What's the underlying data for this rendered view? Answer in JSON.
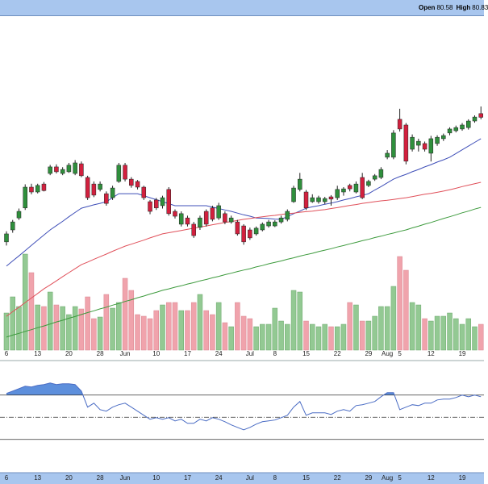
{
  "header": {
    "items": [
      {
        "label": "Open",
        "value": "80.58"
      },
      {
        "label": "High",
        "value": "80.83"
      }
    ]
  },
  "chart_data": {
    "type": "candlestick",
    "categories": [
      "6",
      null,
      null,
      null,
      null,
      "13",
      null,
      null,
      null,
      null,
      "20",
      null,
      null,
      null,
      null,
      "28",
      null,
      null,
      null,
      "Jun",
      null,
      null,
      null,
      null,
      "10",
      null,
      null,
      null,
      null,
      "17",
      null,
      null,
      null,
      null,
      "24",
      null,
      null,
      null,
      null,
      "Jul",
      null,
      null,
      null,
      "8",
      null,
      null,
      null,
      null,
      "15",
      null,
      null,
      null,
      null,
      "22",
      null,
      null,
      null,
      null,
      "29",
      null,
      null,
      "Aug",
      null,
      "5",
      null,
      null,
      null,
      null,
      "12",
      null,
      null,
      null,
      null,
      "19",
      null,
      null,
      null
    ],
    "open": [
      76.08,
      76.5,
      76.92,
      77.27,
      78.0,
      77.83,
      78.11,
      78.48,
      78.71,
      78.48,
      78.54,
      78.48,
      78.82,
      78.34,
      78.11,
      77.92,
      77.77,
      77.63,
      78.2,
      78.77,
      78.28,
      78.2,
      78.0,
      77.49,
      77.55,
      77.35,
      77.92,
      77.15,
      76.7,
      76.92,
      76.7,
      76.59,
      77.15,
      77.27,
      76.92,
      77.07,
      76.78,
      76.78,
      76.64,
      76.5,
      76.36,
      76.5,
      76.64,
      76.64,
      76.78,
      76.87,
      77.49,
      77.92,
      77.83,
      77.49,
      77.49,
      77.49,
      77.66,
      77.63,
      77.83,
      78.06,
      77.83,
      78.34,
      78.06,
      78.28,
      78.34,
      79.05,
      79.05,
      80.38,
      80.18,
      79.33,
      79.47,
      79.53,
      79.19,
      79.53,
      79.7,
      79.9,
      79.98,
      80.04,
      80.09,
      80.32,
      80.58
    ],
    "high": [
      76.45,
      76.85,
      77.25,
      78.1,
      78.12,
      78.12,
      78.18,
      78.78,
      78.8,
      78.7,
      78.85,
      78.95,
      78.9,
      78.4,
      78.2,
      78.2,
      77.85,
      78.05,
      78.85,
      78.85,
      78.35,
      78.25,
      78.05,
      77.55,
      77.62,
      77.7,
      78.0,
      77.22,
      77.15,
      77.0,
      76.78,
      77.0,
      77.22,
      77.35,
      77.45,
      77.15,
      77.0,
      76.85,
      76.7,
      76.58,
      76.62,
      76.76,
      76.85,
      76.84,
      77.0,
      77.22,
      78.05,
      78.5,
      77.9,
      77.75,
      77.7,
      77.66,
      77.72,
      78.05,
      78.0,
      78.12,
      78.2,
      78.5,
      78.26,
      78.46,
      78.7,
      79.3,
      80.0,
      80.75,
      80.25,
      79.85,
      79.7,
      79.6,
      79.8,
      79.82,
      79.88,
      80.1,
      80.16,
      80.25,
      80.38,
      80.52,
      80.83
    ],
    "low": [
      75.95,
      76.4,
      76.85,
      77.2,
      77.75,
      77.78,
      77.85,
      78.42,
      78.48,
      78.42,
      78.5,
      78.42,
      78.35,
      77.55,
      77.65,
      77.85,
      77.35,
      77.55,
      78.15,
      78.2,
      77.98,
      77.92,
      77.55,
      77.05,
      77.2,
      77.25,
      77.0,
      76.9,
      76.62,
      76.62,
      76.22,
      76.5,
      76.62,
      76.8,
      76.85,
      76.7,
      76.72,
      76.3,
      75.98,
      76.15,
      76.3,
      76.45,
      76.58,
      76.6,
      76.72,
      76.8,
      77.45,
      77.85,
      77.2,
      77.45,
      77.42,
      77.4,
      77.35,
      77.55,
      77.7,
      77.85,
      77.78,
      77.58,
      78.0,
      78.22,
      78.28,
      78.98,
      78.98,
      79.95,
      78.8,
      79.25,
      79.25,
      79.25,
      78.9,
      79.45,
      79.62,
      79.82,
      79.92,
      79.98,
      80.02,
      80.26,
      80.38
    ],
    "close": [
      76.36,
      76.78,
      77.15,
      78.0,
      77.83,
      78.06,
      77.88,
      78.71,
      78.54,
      78.62,
      78.77,
      78.85,
      78.4,
      77.63,
      77.72,
      78.11,
      77.43,
      77.97,
      78.77,
      78.28,
      78.06,
      78.0,
      77.63,
      77.15,
      77.27,
      77.63,
      77.07,
      76.98,
      77.07,
      76.7,
      76.3,
      76.92,
      76.7,
      76.87,
      77.35,
      76.78,
      76.92,
      76.36,
      76.08,
      76.22,
      76.56,
      76.7,
      76.78,
      76.78,
      76.92,
      77.15,
      77.97,
      78.28,
      77.27,
      77.63,
      77.63,
      77.6,
      77.58,
      77.92,
      77.94,
      77.94,
      78.11,
      77.63,
      78.2,
      78.4,
      78.62,
      79.19,
      79.9,
      80.04,
      78.91,
      79.75,
      79.61,
      79.33,
      79.7,
      79.75,
      79.81,
      80.04,
      80.09,
      80.18,
      80.32,
      80.46,
      80.45
    ],
    "up_color": "#2f8f3c",
    "down_color": "#d2203e",
    "ylim": [
      72,
      84
    ],
    "series": [
      {
        "color": "#3f4fb8",
        "values": [
          75.23,
          75.41,
          75.59,
          75.77,
          75.96,
          76.14,
          76.32,
          76.5,
          76.65,
          76.8,
          76.96,
          77.11,
          77.26,
          77.32,
          77.38,
          77.43,
          77.49,
          77.63,
          77.77,
          77.77,
          77.77,
          77.77,
          77.7,
          77.63,
          77.56,
          77.49,
          77.42,
          77.35,
          77.35,
          77.35,
          77.35,
          77.35,
          77.35,
          77.3,
          77.25,
          77.2,
          77.15,
          77.09,
          77.03,
          76.98,
          76.92,
          76.91,
          76.9,
          76.88,
          76.87,
          76.97,
          77.07,
          77.16,
          77.26,
          77.31,
          77.35,
          77.4,
          77.44,
          77.49,
          77.55,
          77.6,
          77.66,
          77.71,
          77.77,
          77.9,
          78.02,
          78.15,
          78.28,
          78.37,
          78.45,
          78.54,
          78.62,
          78.71,
          78.79,
          78.88,
          78.96,
          79.05,
          79.18,
          79.31,
          79.44,
          79.57,
          79.7
        ]
      },
      {
        "color": "#e0505a",
        "values": [
          73.47,
          73.63,
          73.79,
          73.95,
          74.11,
          74.27,
          74.43,
          74.57,
          74.71,
          74.86,
          75.0,
          75.14,
          75.28,
          75.37,
          75.47,
          75.56,
          75.65,
          75.75,
          75.84,
          75.93,
          76.0,
          76.07,
          76.14,
          76.22,
          76.29,
          76.36,
          76.4,
          76.44,
          76.48,
          76.52,
          76.56,
          76.6,
          76.64,
          76.68,
          76.72,
          76.76,
          76.79,
          76.83,
          76.87,
          76.9,
          76.93,
          76.96,
          76.99,
          77.01,
          77.04,
          77.07,
          77.09,
          77.12,
          77.14,
          77.16,
          77.19,
          77.21,
          77.25,
          77.28,
          77.32,
          77.36,
          77.39,
          77.43,
          77.46,
          77.49,
          77.52,
          77.54,
          77.57,
          77.6,
          77.63,
          77.67,
          77.71,
          77.75,
          77.78,
          77.82,
          77.86,
          77.91,
          77.96,
          78.02,
          78.07,
          78.12,
          78.17
        ]
      },
      {
        "color": "#3c9a3c",
        "values": [
          72.74,
          72.81,
          72.87,
          72.94,
          73.0,
          73.07,
          73.13,
          73.2,
          73.27,
          73.33,
          73.4,
          73.46,
          73.53,
          73.6,
          73.66,
          73.73,
          73.79,
          73.86,
          73.92,
          73.99,
          74.05,
          74.12,
          74.18,
          74.25,
          74.31,
          74.38,
          74.43,
          74.49,
          74.54,
          74.6,
          74.65,
          74.71,
          74.76,
          74.82,
          74.87,
          74.93,
          74.98,
          75.04,
          75.09,
          75.14,
          75.2,
          75.25,
          75.31,
          75.36,
          75.41,
          75.47,
          75.52,
          75.58,
          75.63,
          75.68,
          75.74,
          75.79,
          75.84,
          75.9,
          75.95,
          76.01,
          76.06,
          76.12,
          76.17,
          76.23,
          76.28,
          76.34,
          76.39,
          76.45,
          76.5,
          76.57,
          76.63,
          76.7,
          76.76,
          76.83,
          76.9,
          76.96,
          77.03,
          77.1,
          77.16,
          77.23,
          77.29
        ]
      }
    ],
    "volume": {
      "type": "bar",
      "ylim": [
        0,
        20
      ],
      "up_color": "#93c993",
      "down_color": "#f0a3ac",
      "values": [
        4.6,
        6.6,
        5.4,
        11.9,
        9.6,
        5.6,
        5.4,
        7.2,
        5.6,
        5.4,
        4.4,
        5.4,
        5.1,
        6.6,
        3.9,
        4.1,
        6.9,
        5.2,
        5.9,
        8.9,
        7.4,
        4.4,
        4.2,
        3.9,
        4.9,
        5.6,
        5.9,
        5.9,
        4.9,
        4.9,
        5.9,
        6.9,
        4.9,
        4.4,
        5.9,
        3.4,
        2.9,
        5.9,
        4.2,
        3.9,
        2.9,
        3.2,
        3.2,
        5.2,
        3.6,
        3.2,
        7.4,
        7.2,
        3.6,
        3.2,
        2.9,
        3.2,
        2.9,
        2.9,
        3.2,
        5.9,
        5.6,
        3.6,
        3.6,
        4.2,
        5.4,
        5.4,
        7.9,
        11.6,
        9.9,
        5.9,
        5.6,
        3.9,
        3.6,
        4.2,
        4.2,
        4.6,
        3.9,
        3.2,
        3.9,
        2.9,
        3.2
      ]
    },
    "indicator": {
      "type": "line",
      "ylim": [
        0,
        100
      ],
      "levels": [
        70,
        50,
        30
      ],
      "color": "#4a6cc4",
      "fill_color": "#5d8fdc",
      "values": [
        71.5,
        73.6,
        75.8,
        78.0,
        77.3,
        78.7,
        79.5,
        80.9,
        79.5,
        80.2,
        80.2,
        79.5,
        73.6,
        59.1,
        62.7,
        56.9,
        55.5,
        59.1,
        61.3,
        62.7,
        59.1,
        55.5,
        51.8,
        48.2,
        49.6,
        48.2,
        49.6,
        46.7,
        48.2,
        44.5,
        44.5,
        48.2,
        46.7,
        49.6,
        48.2,
        46.0,
        43.1,
        40.9,
        38.7,
        40.9,
        43.8,
        46.0,
        46.7,
        47.5,
        49.6,
        51.8,
        59.1,
        64.2,
        51.8,
        54.0,
        54.0,
        54.0,
        52.5,
        55.5,
        56.9,
        55.5,
        60.5,
        61.3,
        62.7,
        64.2,
        68.5,
        72.2,
        72.2,
        56.9,
        59.1,
        61.3,
        60.5,
        62.7,
        62.7,
        65.6,
        66.4,
        66.4,
        67.8,
        70.0,
        68.5,
        70.0,
        68.5
      ]
    }
  }
}
